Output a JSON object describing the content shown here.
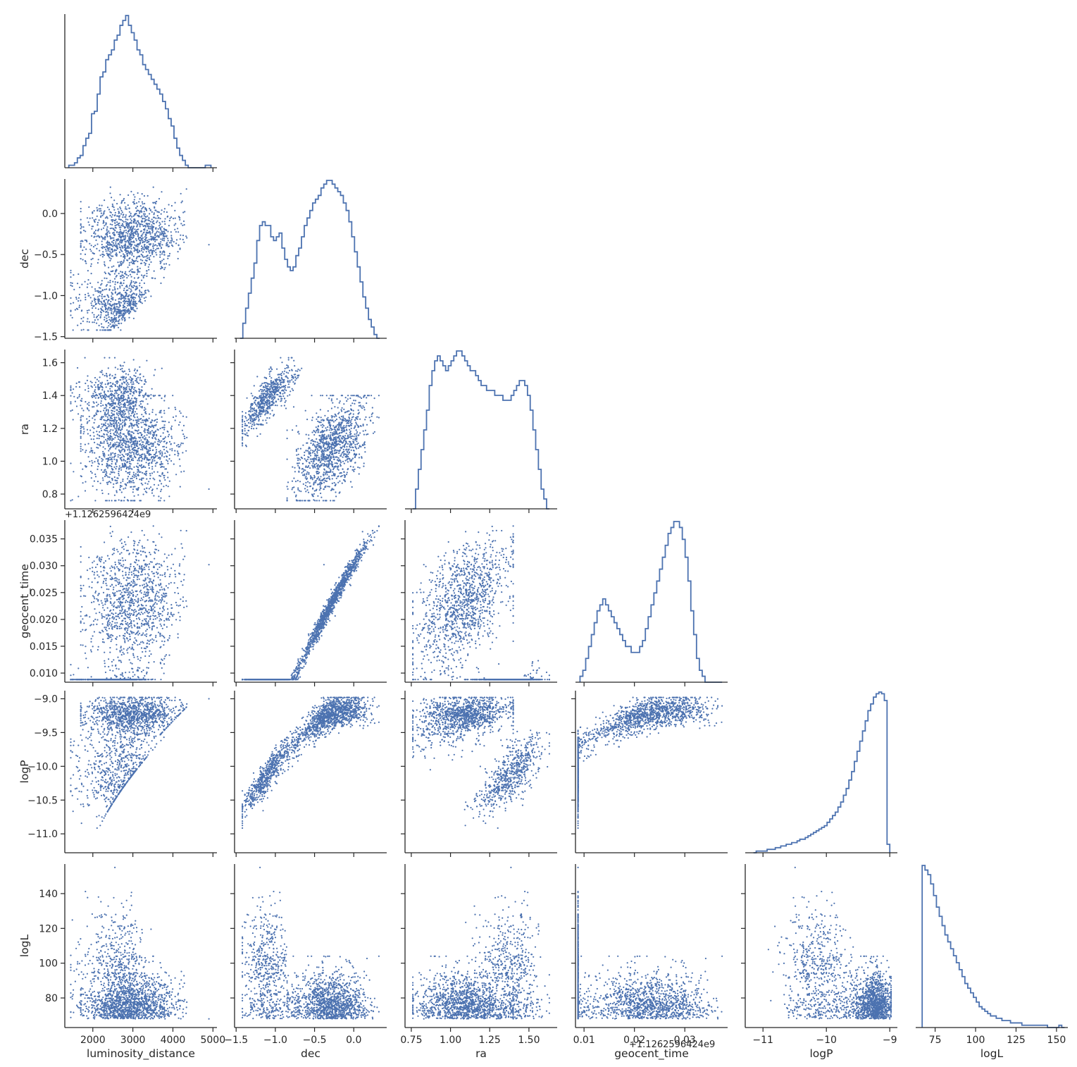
{
  "chart_data": {
    "type": "pairplot-corner",
    "variables": [
      "luminosity_distance",
      "dec",
      "ra",
      "geocent_time",
      "logP",
      "logL"
    ],
    "axis_labels": {
      "x": [
        "luminosity_distance",
        "dec",
        "ra",
        "geocent_time",
        "logP",
        "logL"
      ],
      "y": [
        "",
        "dec",
        "ra",
        "geocent_time",
        "logP",
        "logL"
      ]
    },
    "offset_text": "+1.1262596424e9",
    "ranges": [
      [
        1300,
        5100
      ],
      [
        -1.52,
        0.42
      ],
      [
        0.71,
        1.68
      ],
      [
        0.0083,
        0.0385
      ],
      [
        -11.28,
        -8.88
      ],
      [
        63,
        157
      ]
    ],
    "ticks": [
      {
        "values": [
          2000,
          3000,
          4000,
          5000
        ],
        "labels": [
          "2000",
          "3000",
          "4000",
          "5000"
        ]
      },
      {
        "values": [
          -1.5,
          -1.0,
          -0.5,
          0.0
        ],
        "labels": [
          "−1.5",
          "−1.0",
          "−0.5",
          "0.0"
        ]
      },
      {
        "values": [
          0.8,
          1.0,
          1.2,
          1.4,
          1.6
        ],
        "labels": [
          "0.8",
          "1.0",
          "1.2",
          "1.4",
          "1.6"
        ],
        "x_values": [
          0.75,
          1.0,
          1.25,
          1.5
        ],
        "x_labels": [
          "0.75",
          "1.00",
          "1.25",
          "1.50"
        ]
      },
      {
        "values": [
          0.01,
          0.015,
          0.02,
          0.025,
          0.03,
          0.035
        ],
        "labels": [
          "0.010",
          "0.015",
          "0.020",
          "0.025",
          "0.030",
          "0.035"
        ],
        "x_values": [
          0.01,
          0.02,
          0.03
        ],
        "x_labels": [
          "0.01",
          "0.02",
          "0.03"
        ]
      },
      {
        "values": [
          -11.0,
          -10.5,
          -10.0,
          -9.5,
          -9.0
        ],
        "labels": [
          "−11.0",
          "−10.5",
          "−10.0",
          "−9.5",
          "−9.0"
        ],
        "x_values": [
          -11,
          -10,
          -9
        ],
        "x_labels": [
          "−11",
          "−10",
          "−9"
        ]
      },
      {
        "values": [
          80,
          100,
          120,
          140
        ],
        "labels": [
          "80",
          "100",
          "120",
          "140"
        ],
        "x_values": [
          75,
          100,
          125,
          150
        ],
        "x_labels": [
          "75",
          "100",
          "125",
          "150"
        ]
      }
    ],
    "histograms": [
      {
        "variable": "luminosity_distance",
        "bins": [
          1400,
          4950
        ],
        "counts": [
          1,
          1,
          2,
          4,
          5,
          9,
          12,
          14,
          22,
          23,
          30,
          37,
          39,
          44,
          46,
          48,
          52,
          54,
          58,
          60,
          62,
          58,
          55,
          52,
          48,
          46,
          42,
          40,
          38,
          36,
          34,
          32,
          30,
          27,
          24,
          20,
          17,
          12,
          8,
          5,
          3,
          1,
          0,
          0,
          0,
          0,
          0,
          0,
          1,
          1
        ]
      },
      {
        "variable": "dec",
        "bins": [
          -1.45,
          0.33
        ],
        "counts": [
          0,
          4,
          8,
          12,
          16,
          20,
          26,
          30,
          31,
          30,
          30,
          27,
          26,
          27,
          28,
          24,
          21,
          19,
          18,
          19,
          22,
          24,
          27,
          30,
          32,
          34,
          36,
          37,
          38,
          40,
          41,
          42,
          42,
          41,
          40,
          39,
          38,
          36,
          34,
          31,
          27,
          23,
          19,
          15,
          11,
          8,
          5,
          3,
          1,
          0
        ]
      },
      {
        "variable": "ra",
        "bins": [
          0.76,
          1.63
        ],
        "counts": [
          0,
          4,
          8,
          12,
          16,
          20,
          25,
          28,
          30,
          31,
          30,
          29,
          28,
          29,
          30,
          31,
          32,
          32,
          31,
          30,
          29,
          28,
          28,
          27,
          26,
          25,
          25,
          24,
          24,
          24,
          23,
          23,
          23,
          22,
          22,
          22,
          23,
          24,
          25,
          26,
          26,
          25,
          23,
          20,
          16,
          12,
          8,
          4,
          2,
          0
        ]
      },
      {
        "variable": "geocent_time",
        "bins": [
          0.0092,
          0.0374
        ],
        "counts": [
          1,
          2,
          4,
          6,
          8,
          10,
          12,
          13,
          14,
          13,
          12,
          11,
          10,
          9,
          8,
          7,
          6,
          6,
          5,
          5,
          5,
          6,
          7,
          9,
          11,
          13,
          15,
          17,
          19,
          21,
          23,
          25,
          26,
          27,
          27,
          26,
          24,
          21,
          17,
          12,
          8,
          4,
          2,
          1,
          0,
          0,
          0,
          0,
          0,
          0
        ]
      },
      {
        "variable": "logP",
        "bins": [
          -11.15,
          -9.0
        ],
        "counts": [
          0,
          1,
          1,
          1,
          1,
          2,
          2,
          2,
          3,
          3,
          4,
          4,
          5,
          5,
          6,
          6,
          7,
          8,
          8,
          9,
          10,
          11,
          12,
          13,
          14,
          15,
          16,
          18,
          20,
          22,
          24,
          27,
          30,
          34,
          38,
          43,
          48,
          54,
          60,
          66,
          72,
          78,
          84,
          88,
          92,
          94,
          95,
          94,
          90,
          5
        ]
      },
      {
        "variable": "logL",
        "bins": [
          67,
          155
        ],
        "counts": [
          70,
          68,
          66,
          62,
          57,
          52,
          48,
          44,
          40,
          37,
          34,
          31,
          28,
          25,
          22,
          19,
          17,
          15,
          13,
          11,
          9,
          8,
          7,
          6,
          5,
          5,
          4,
          4,
          3,
          3,
          3,
          2,
          2,
          2,
          2,
          1,
          1,
          1,
          1,
          1,
          1,
          1,
          1,
          1,
          0,
          0,
          0,
          0,
          1,
          0
        ]
      }
    ],
    "scatter_points_per_panel": 1800
  },
  "icons": {},
  "colors": {
    "series": "#4c72b0",
    "axis": "#262626"
  }
}
